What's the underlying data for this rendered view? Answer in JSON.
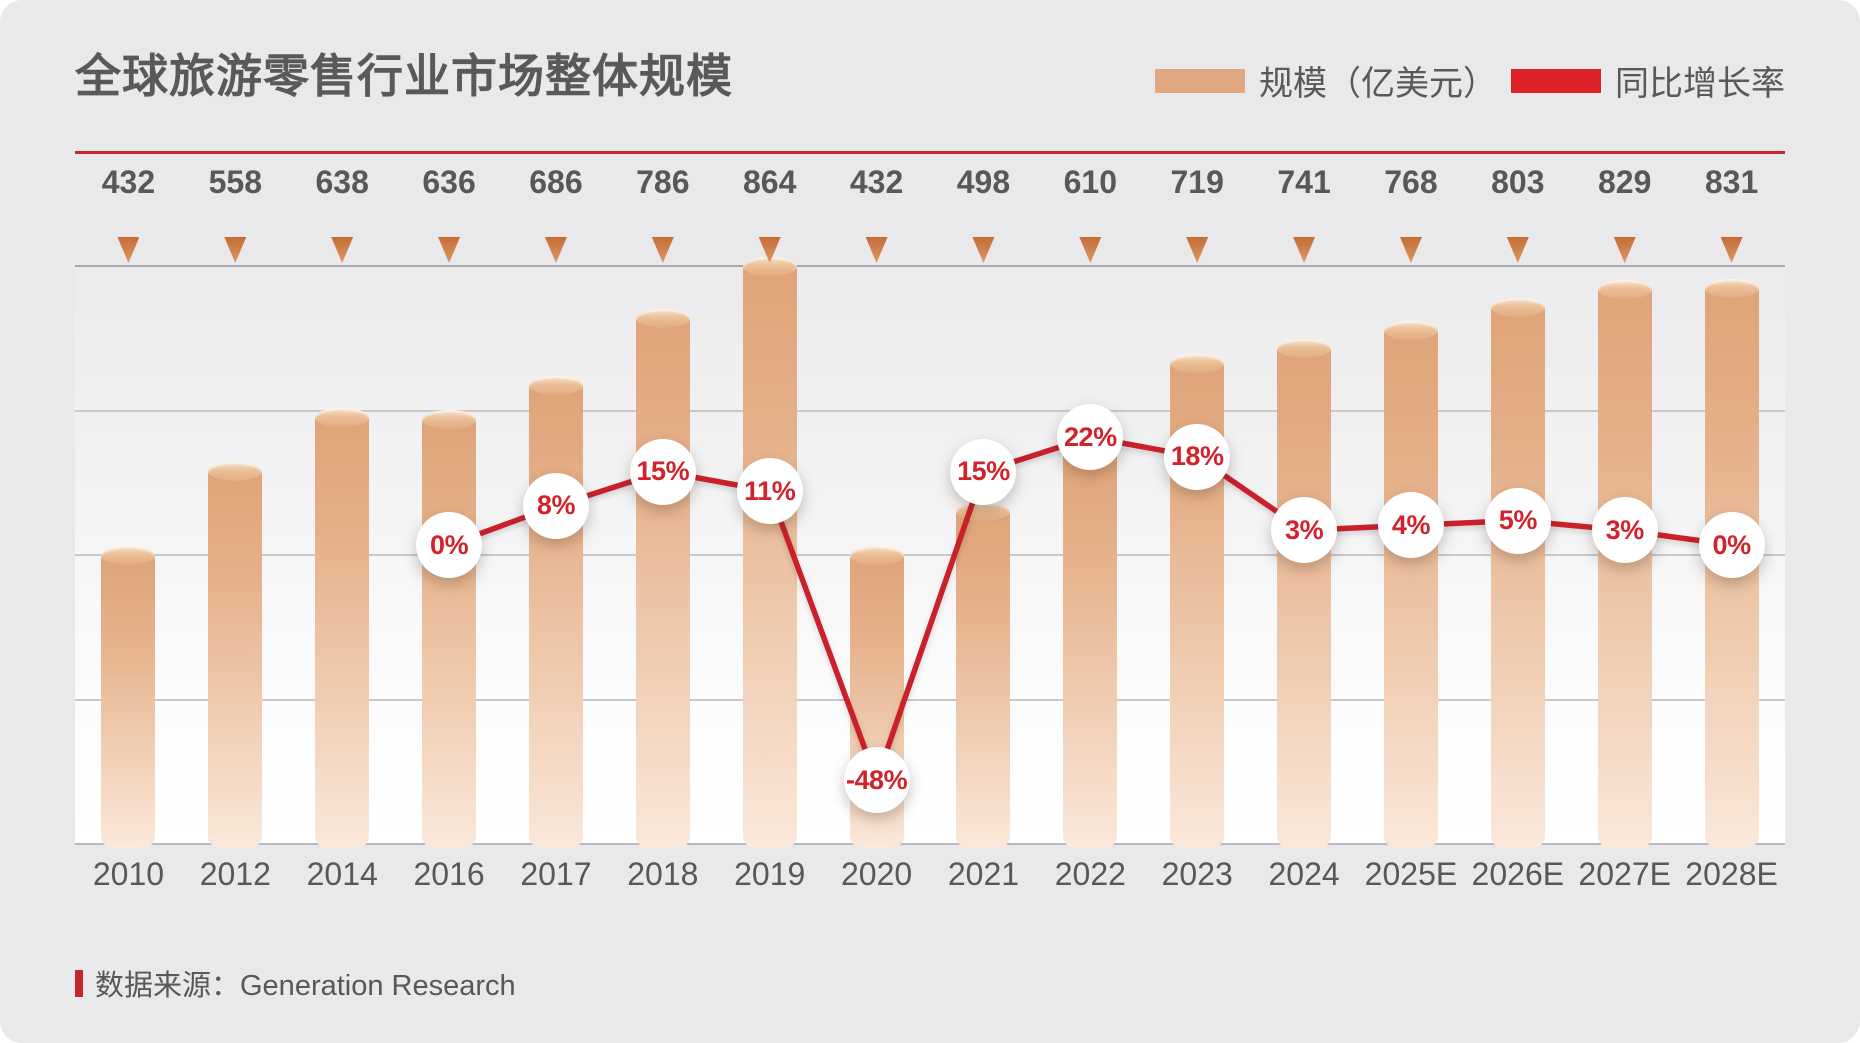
{
  "title": "全球旅游零售行业市场整体规模",
  "legend": {
    "bars_label": "规模（亿美元）",
    "line_label": "同比增长率"
  },
  "source": {
    "label": "数据来源：Generation Research"
  },
  "colors": {
    "bar_swatch": "#dfa77f",
    "line_swatch": "#dd2126",
    "line_stroke": "#c9202a",
    "pct_text": "#d2232a",
    "title_text": "#5a5858",
    "axis_text": "#595757",
    "rule_red": "#c8262c",
    "background": "#e9e8ea"
  },
  "chart_data": {
    "type": "bar",
    "title": "全球旅游零售行业市场整体规模",
    "categories": [
      "2010",
      "2012",
      "2014",
      "2016",
      "2017",
      "2018",
      "2019",
      "2020",
      "2021",
      "2022",
      "2023",
      "2024",
      "2025E",
      "2026E",
      "2027E",
      "2028E"
    ],
    "series": [
      {
        "name": "规模（亿美元）",
        "type": "bar",
        "values": [
          432,
          558,
          638,
          636,
          686,
          786,
          864,
          432,
          498,
          610,
          719,
          741,
          768,
          803,
          829,
          831
        ]
      },
      {
        "name": "同比增长率",
        "type": "line",
        "values": [
          null,
          null,
          null,
          0,
          8,
          15,
          11,
          -48,
          15,
          22,
          18,
          3,
          4,
          5,
          3,
          0
        ],
        "labels": [
          null,
          null,
          null,
          "0%",
          "8%",
          "15%",
          "11%",
          "-48%",
          "15%",
          "22%",
          "18%",
          "3%",
          "4%",
          "5%",
          "3%",
          "0%"
        ]
      }
    ],
    "ylim": [
      0,
      864
    ],
    "grid": "horizontal",
    "legend_position": "top-right"
  }
}
